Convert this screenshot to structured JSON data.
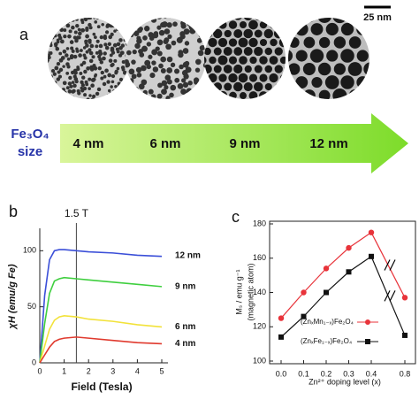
{
  "panel_a": {
    "label": "a",
    "scale_bar": "25 nm",
    "arrow_label": [
      "Fe₃O₄",
      "size"
    ],
    "sizes": [
      "4 nm",
      "6 nm",
      "9 nm",
      "12 nm"
    ]
  },
  "chart_data": [
    {
      "type": "line",
      "label": "b",
      "xlabel": "Field (Tesla)",
      "ylabel": "χH (emu/g Fe)",
      "annotation": "1.5 T",
      "annotation_x": 1.5,
      "x": [
        0,
        0.2,
        0.4,
        0.6,
        0.8,
        1,
        1.5,
        2,
        3,
        4,
        5
      ],
      "xlim": [
        0,
        5
      ],
      "xticks": [
        0,
        1,
        2,
        3,
        4,
        5
      ],
      "ylim": [
        0,
        120
      ],
      "yticks": [
        0,
        50,
        100
      ],
      "series": [
        {
          "name": "12 nm",
          "color": "#3b4fd8",
          "values": [
            0,
            60,
            92,
            100,
            101,
            101,
            100,
            99,
            98,
            96,
            95
          ]
        },
        {
          "name": "9 nm",
          "color": "#3fcf3f",
          "values": [
            0,
            35,
            62,
            73,
            75,
            76,
            75,
            74,
            72,
            70,
            68
          ]
        },
        {
          "name": "6 nm",
          "color": "#f2e23a",
          "values": [
            0,
            15,
            30,
            38,
            41,
            42,
            41,
            39,
            37,
            34,
            32
          ]
        },
        {
          "name": "4 nm",
          "color": "#e03a2e",
          "values": [
            0,
            7,
            14,
            19,
            21,
            22,
            23,
            22,
            20,
            18,
            17
          ]
        }
      ]
    },
    {
      "type": "line",
      "label": "c",
      "xlabel": "Zn²⁺ doping level (x)",
      "ylabel": [
        "Mₛ / emu g⁻¹",
        "(magnetic atom)"
      ],
      "categories": [
        "0.0",
        "0.1",
        "0.2",
        "0.3",
        "0.4",
        "0.8"
      ],
      "ylim": [
        100,
        180
      ],
      "yticks": [
        100,
        120,
        140,
        160,
        180
      ],
      "series": [
        {
          "name": "(ZnₓMn₁₋ₓ)Fe₂O₄",
          "color": "#e8333a",
          "values": [
            125,
            140,
            154,
            166,
            175,
            137
          ]
        },
        {
          "name": "(ZnₓFe₁₋ₓ)Fe₂O₄",
          "color": "#111111",
          "values": [
            114,
            126,
            140,
            152,
            161,
            115
          ]
        }
      ]
    }
  ]
}
